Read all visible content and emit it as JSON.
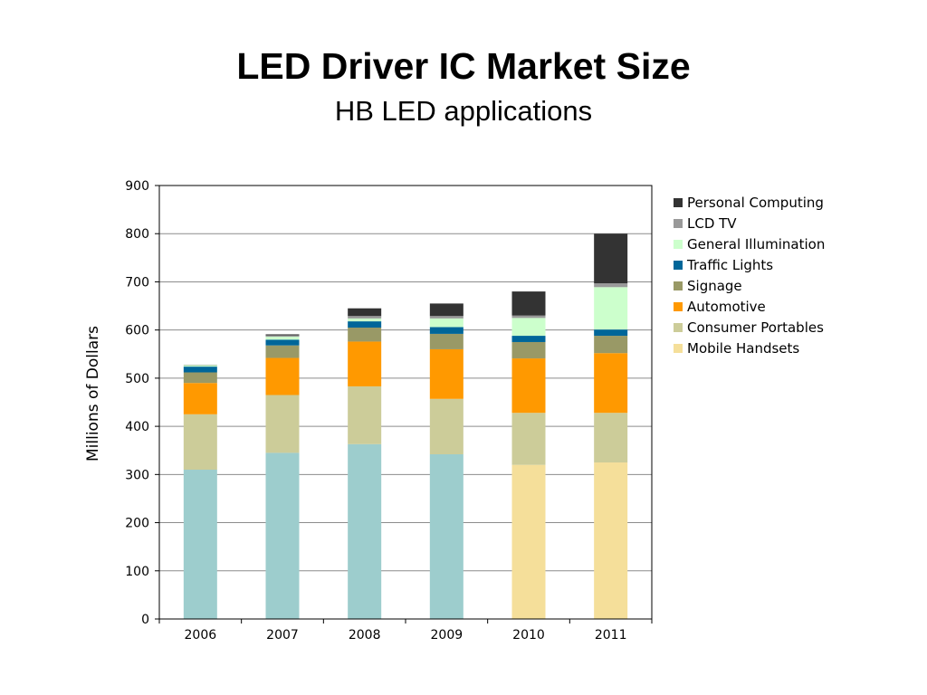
{
  "title": "LED Driver IC Market Size",
  "subtitle": "HB LED applications",
  "chart_data": {
    "type": "bar",
    "stacked": true,
    "title": "LED Driver IC Market Size",
    "subtitle": "HB LED applications",
    "xlabel": "",
    "ylabel": "Millions of Dollars",
    "ylim": [
      0,
      900
    ],
    "yticks": [
      0,
      100,
      200,
      300,
      400,
      500,
      600,
      700,
      800,
      900
    ],
    "grid": true,
    "legend_position": "right",
    "categories": [
      "2006",
      "2007",
      "2008",
      "2009",
      "2010",
      "2011"
    ],
    "series": [
      {
        "name": "Mobile Handsets",
        "color": "#F5DF9A",
        "color_2006_2009": "#9DCDCD",
        "values": [
          310,
          345,
          363,
          342,
          320,
          325
        ]
      },
      {
        "name": "Consumer Portables",
        "color": "#CCCC99",
        "values": [
          115,
          120,
          120,
          115,
          108,
          103
        ]
      },
      {
        "name": "Automotive",
        "color": "#FF9900",
        "values": [
          65,
          77,
          93,
          103,
          113,
          124
        ]
      },
      {
        "name": "Signage",
        "color": "#999966",
        "values": [
          22,
          26,
          29,
          32,
          34,
          36
        ]
      },
      {
        "name": "Traffic Lights",
        "color": "#006699",
        "values": [
          12,
          12,
          13,
          14,
          13,
          13
        ]
      },
      {
        "name": "General Illumination",
        "color": "#CCFFCC",
        "values": [
          3,
          6,
          6,
          18,
          37,
          88
        ]
      },
      {
        "name": "LCD TV",
        "color": "#999999",
        "values": [
          1,
          3,
          5,
          5,
          5,
          8
        ]
      },
      {
        "name": "Personal Computing",
        "color": "#333333",
        "values": [
          0,
          2,
          16,
          26,
          50,
          103
        ]
      }
    ]
  }
}
